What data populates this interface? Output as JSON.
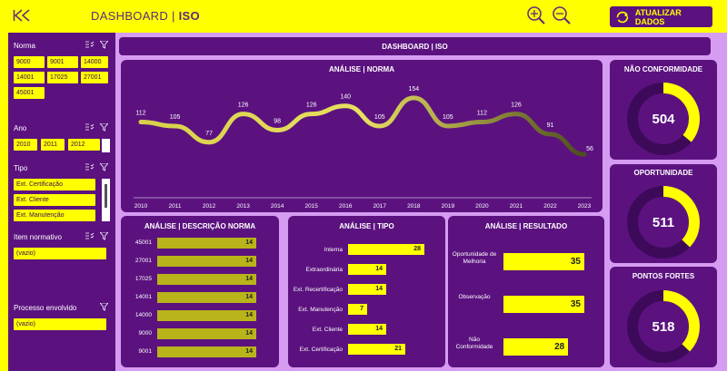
{
  "header": {
    "title_left": "DASHBOARD",
    "title_sep": "|",
    "title_right": "ISO",
    "update_button": "ATUALIZAR DADOS"
  },
  "main_title": "DASHBOARD | ISO",
  "filters": {
    "norma": {
      "label": "Norma",
      "options": [
        "9000",
        "9001",
        "14000",
        "14001",
        "17025",
        "27001",
        "45001"
      ]
    },
    "ano": {
      "label": "Ano",
      "options": [
        "2010",
        "2011",
        "2012"
      ]
    },
    "tipo": {
      "label": "Tipo",
      "options": [
        "Ext. Certificação",
        "Ext. Cliente",
        "Ext. Manutenção"
      ]
    },
    "item_normativo": {
      "label": "Item normativo",
      "options": [
        "(vazio)"
      ]
    },
    "processo": {
      "label": "Processo envolvido",
      "options": [
        "(vazio)"
      ]
    }
  },
  "line_panel": {
    "title": "ANÁLISE | NORMA",
    "chart_data": {
      "type": "line",
      "x": [
        "2010",
        "2011",
        "2012",
        "2013",
        "2014",
        "2015",
        "2016",
        "2017",
        "2018",
        "2019",
        "2020",
        "2021",
        "2022",
        "2023"
      ],
      "values": [
        112,
        105,
        77,
        126,
        98,
        126,
        140,
        105,
        154,
        105,
        112,
        126,
        91,
        56
      ]
    }
  },
  "norma_panel": {
    "title": "ANÁLISE | DESCRIÇÃO NORMA",
    "chart_data": {
      "type": "bar",
      "categories": [
        "45001",
        "27001",
        "17025",
        "14001",
        "14000",
        "9000",
        "9001"
      ],
      "values": [
        14,
        14,
        14,
        14,
        14,
        14,
        14
      ]
    }
  },
  "tipo_panel": {
    "title": "ANÁLISE | TIPO",
    "chart_data": {
      "type": "bar",
      "categories": [
        "Interna",
        "Extraordinária",
        "Ext. Recertificação",
        "Ext. Manutenção",
        "Ext. Cliente",
        "Ext. Certificação"
      ],
      "values": [
        28,
        14,
        14,
        7,
        14,
        21
      ]
    }
  },
  "resultado_panel": {
    "title": "ANÁLISE | RESULTADO",
    "chart_data": {
      "type": "bar",
      "categories": [
        "Oportunidade de Melhoria",
        "Observação",
        "Não Conformidade"
      ],
      "values": [
        35,
        35,
        28
      ]
    }
  },
  "kpis": [
    {
      "title": "NÃO CONFORMIDADE",
      "value": "504",
      "fraction": 0.36
    },
    {
      "title": "OPORTUNIDADE",
      "value": "511",
      "fraction": 0.37
    },
    {
      "title": "PONTOS FORTES",
      "value": "518",
      "fraction": 0.37
    }
  ],
  "colors": {
    "purple": "#5b127f",
    "yellow": "#ffff00",
    "lavender": "#d69cf2",
    "olive": "#b8b41a"
  }
}
